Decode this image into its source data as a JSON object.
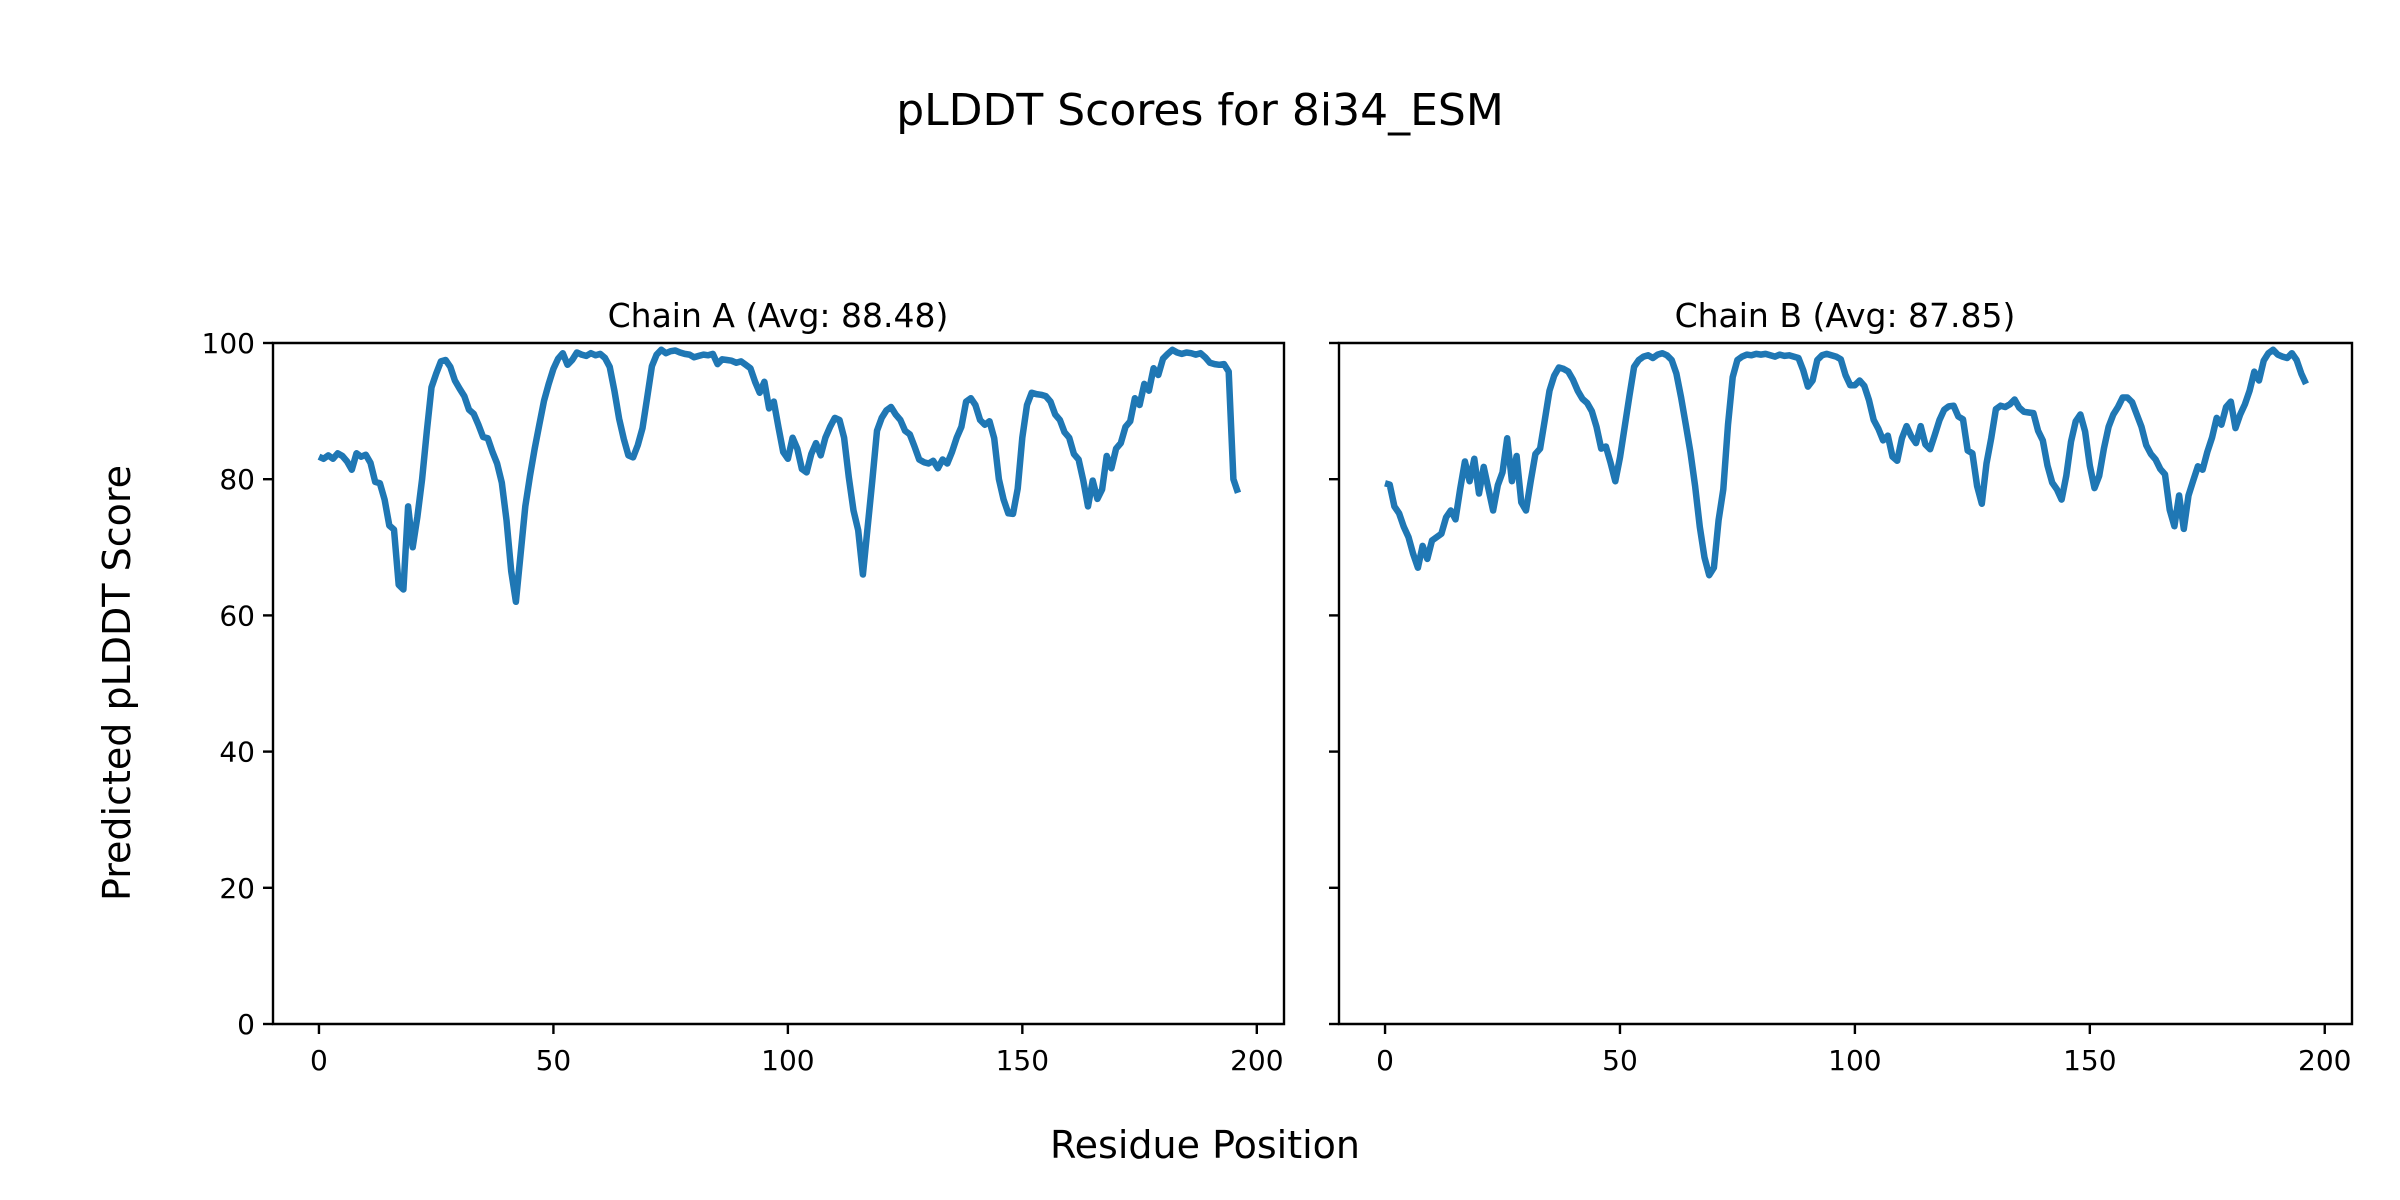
{
  "figure": {
    "title": "pLDDT Scores for 8i34_ESM",
    "xlabel": "Residue Position",
    "ylabel": "Predicted pLDDT Score",
    "background_color": "#ffffff",
    "line_color": "#1f77b4",
    "spine_color": "#000000",
    "text_color": "#000000"
  },
  "chart_data": [
    {
      "type": "line",
      "title": "Chain A (Avg: 88.48)",
      "chain": "A",
      "average_plddt": 88.48,
      "xlim": [
        -9.8,
        205.8
      ],
      "ylim": [
        0,
        100
      ],
      "xticks": [
        0,
        50,
        100,
        150,
        200
      ],
      "yticks": [
        0,
        20,
        40,
        60,
        80,
        100
      ],
      "show_ytick_labels": true,
      "x_start": 0,
      "x_step": 1,
      "values": [
        83.3,
        83.0,
        83.5,
        83.0,
        83.8,
        83.4,
        82.6,
        81.4,
        83.8,
        83.3,
        83.6,
        82.4,
        79.6,
        79.4,
        77.0,
        73.2,
        72.6,
        64.5,
        63.8,
        76.0,
        70.0,
        74.5,
        80.0,
        87.0,
        93.5,
        95.5,
        97.3,
        97.5,
        96.5,
        94.5,
        93.3,
        92.2,
        90.2,
        89.6,
        88.0,
        86.2,
        86.0,
        84.0,
        82.3,
        79.5,
        74.0,
        66.5,
        62.0,
        69.0,
        76.0,
        80.5,
        84.5,
        88.0,
        91.5,
        94.0,
        96.2,
        97.7,
        98.5,
        96.8,
        97.5,
        98.6,
        98.3,
        98.1,
        98.5,
        98.2,
        98.4,
        97.8,
        96.5,
        93.0,
        88.9,
        85.9,
        83.5,
        83.2,
        85.0,
        87.5,
        92.0,
        96.6,
        98.3,
        99.0,
        98.5,
        98.8,
        98.9,
        98.6,
        98.4,
        98.3,
        97.9,
        98.1,
        98.3,
        98.2,
        98.4,
        96.9,
        97.6,
        97.5,
        97.4,
        97.1,
        97.3,
        96.8,
        96.3,
        94.3,
        92.7,
        94.3,
        90.4,
        91.4,
        87.6,
        84.0,
        83.0,
        86.1,
        84.5,
        81.5,
        81.0,
        83.7,
        85.3,
        83.5,
        86.1,
        87.7,
        89.0,
        88.7,
        86.1,
        80.3,
        75.4,
        72.5,
        66.0,
        72.9,
        79.8,
        87.1,
        89.0,
        90.1,
        90.6,
        89.5,
        88.7,
        87.1,
        86.6,
        84.8,
        82.9,
        82.5,
        82.3,
        82.7,
        81.6,
        82.9,
        82.3,
        84.0,
        86.1,
        87.7,
        91.4,
        91.9,
        90.9,
        88.7,
        88.0,
        88.5,
        86.0,
        80.0,
        77.0,
        75.0,
        74.9,
        78.6,
        86.1,
        90.9,
        92.7,
        92.5,
        92.4,
        92.2,
        91.4,
        89.5,
        88.7,
        86.9,
        86.1,
        83.7,
        82.9,
        79.8,
        76.0,
        79.8,
        77.1,
        78.5,
        83.4,
        81.6,
        84.5,
        85.3,
        87.7,
        88.5,
        91.9,
        90.9,
        94.0,
        93.0,
        96.3,
        95.3,
        97.7,
        98.4,
        99.0,
        98.6,
        98.4,
        98.6,
        98.5,
        98.3,
        98.5,
        97.9,
        97.1,
        96.9,
        96.8,
        96.9,
        95.8,
        80.0,
        78.0
      ]
    },
    {
      "type": "line",
      "title": "Chain B (Avg: 87.85)",
      "chain": "B",
      "average_plddt": 87.85,
      "xlim": [
        -9.8,
        205.8
      ],
      "ylim": [
        0,
        100
      ],
      "xticks": [
        0,
        50,
        100,
        150,
        200
      ],
      "yticks": [
        0,
        20,
        40,
        60,
        80,
        100
      ],
      "show_ytick_labels": false,
      "x_start": 0,
      "x_step": 1,
      "values": [
        79.4,
        79.2,
        76.0,
        75.0,
        73.0,
        71.5,
        69.0,
        67.0,
        70.2,
        68.3,
        71.0,
        71.5,
        72.0,
        74.4,
        75.4,
        74.1,
        78.6,
        82.6,
        79.7,
        83.0,
        77.9,
        81.8,
        78.6,
        75.4,
        79.1,
        81.0,
        86.0,
        79.7,
        83.4,
        76.6,
        75.4,
        79.7,
        83.7,
        84.5,
        88.7,
        93.0,
        95.2,
        96.4,
        96.2,
        95.8,
        94.6,
        93.0,
        91.8,
        91.2,
        90.0,
        87.7,
        84.5,
        84.8,
        82.4,
        79.7,
        83.2,
        87.7,
        92.2,
        96.5,
        97.5,
        98.0,
        98.2,
        97.8,
        98.3,
        98.5,
        98.2,
        97.5,
        95.5,
        92.0,
        88.0,
        84.0,
        79.0,
        73.0,
        68.5,
        65.9,
        67.0,
        74.0,
        78.5,
        88.0,
        95.0,
        97.5,
        98.0,
        98.3,
        98.2,
        98.4,
        98.3,
        98.4,
        98.2,
        98.0,
        98.3,
        98.1,
        98.2,
        98.0,
        97.8,
        96.0,
        93.6,
        94.5,
        97.5,
        98.2,
        98.4,
        98.2,
        98.0,
        97.6,
        95.3,
        93.8,
        93.8,
        94.5,
        93.7,
        91.6,
        88.7,
        87.4,
        85.7,
        86.4,
        83.3,
        82.7,
        86.0,
        87.8,
        86.3,
        85.3,
        87.8,
        85.1,
        84.4,
        86.5,
        88.7,
        90.2,
        90.7,
        90.8,
        89.2,
        88.8,
        84.2,
        83.8,
        79.0,
        76.4,
        82.3,
        86.0,
        90.3,
        90.8,
        90.6,
        91.0,
        91.7,
        90.5,
        89.9,
        89.8,
        89.7,
        87.1,
        85.7,
        82.0,
        79.5,
        78.5,
        77.0,
        80.5,
        85.5,
        88.5,
        89.5,
        87.0,
        82.0,
        78.7,
        80.5,
        84.5,
        87.7,
        89.5,
        90.6,
        92.0,
        92.0,
        91.3,
        89.5,
        87.7,
        85.0,
        83.7,
        82.9,
        81.5,
        80.7,
        75.5,
        73.1,
        77.6,
        72.7,
        77.6,
        79.8,
        81.9,
        81.4,
        84.0,
        86.1,
        89.0,
        88.0,
        90.6,
        91.4,
        87.5,
        89.5,
        91.0,
        93.0,
        95.8,
        94.5,
        97.4,
        98.5,
        99.0,
        98.3,
        98.0,
        97.8,
        98.5,
        97.5,
        95.5,
        94.0
      ]
    }
  ]
}
